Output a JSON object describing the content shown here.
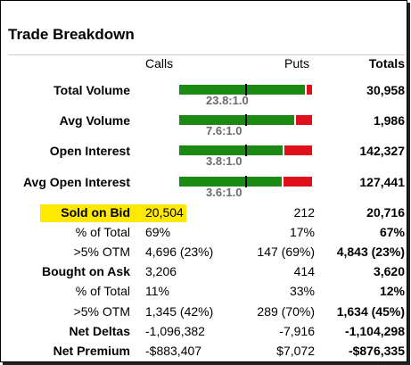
{
  "title": "Trade Breakdown",
  "headers": {
    "calls": "Calls",
    "puts": "Puts",
    "totals": "Totals"
  },
  "bar_rows": [
    {
      "label": "Total Volume",
      "ratio": "23.8:1.0",
      "total": "30,958",
      "calls_share": 0.96
    },
    {
      "label": "Avg Volume",
      "ratio": "7.6:1.0",
      "total": "1,986",
      "calls_share": 0.88
    },
    {
      "label": "Open Interest",
      "ratio": "3.8:1.0",
      "total": "142,327",
      "calls_share": 0.79
    },
    {
      "label": "Avg Open Interest",
      "ratio": "3.6:1.0",
      "total": "127,441",
      "calls_share": 0.78
    }
  ],
  "rows": [
    {
      "label": "Sold on Bid",
      "bold": true,
      "highlight": true,
      "calls": "20,504",
      "puts": "212",
      "total": "20,716"
    },
    {
      "label": "% of Total",
      "bold": false,
      "calls": "69%",
      "puts": "17%",
      "total": "67%"
    },
    {
      "label": ">5% OTM",
      "bold": false,
      "calls": "4,696 (23%)",
      "puts": "147 (69%)",
      "total": "4,843 (23%)"
    },
    {
      "label": "Bought on Ask",
      "bold": true,
      "calls": "3,206",
      "puts": "414",
      "total": "3,620"
    },
    {
      "label": "% of Total",
      "bold": false,
      "calls": "11%",
      "puts": "33%",
      "total": "12%"
    },
    {
      "label": ">5% OTM",
      "bold": false,
      "calls": "1,345 (42%)",
      "puts": "289 (70%)",
      "total": "1,634 (45%)"
    },
    {
      "label": "Net Deltas",
      "bold": true,
      "calls": "-1,096,382",
      "puts": "-7,916",
      "total": "-1,104,298"
    },
    {
      "label": "Net Premium",
      "bold": true,
      "calls": "-$883,407",
      "puts": "$7,072",
      "total": "-$876,335"
    }
  ],
  "colors": {
    "calls": "#1a8a12",
    "puts": "#e0101a",
    "highlight": "#ffe900",
    "ratio_text": "#6b6b6b"
  }
}
